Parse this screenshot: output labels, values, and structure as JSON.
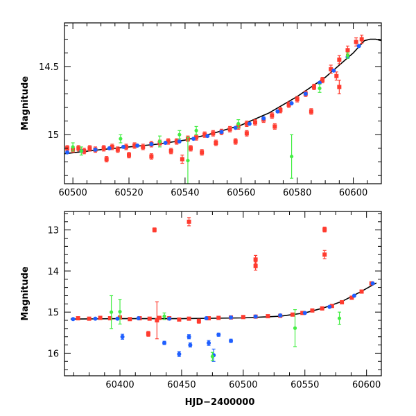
{
  "colors": {
    "red": "#ff3b2f",
    "blue": "#1f5fff",
    "green": "#44ee44",
    "model": "#000000"
  },
  "chart_data": [
    {
      "type": "scatter",
      "title": "",
      "xlabel": "",
      "ylabel": "Magnitude",
      "xlim": [
        60497,
        60610
      ],
      "ylim": [
        15.36,
        14.18
      ],
      "y_inverted": true,
      "xticks": [
        60500,
        60520,
        60540,
        60560,
        60580,
        60600
      ],
      "xtick_labels": [
        "60500",
        "60520",
        "60540",
        "60560",
        "60580",
        "60600"
      ],
      "yticks": [
        14.5,
        15
      ],
      "ytick_labels": [
        "14.5",
        "15"
      ],
      "grid": false,
      "model_curve": {
        "x": [
          60497,
          60510,
          60520,
          60530,
          60540,
          60550,
          60560,
          60570,
          60580,
          60590,
          60600,
          60604,
          60606,
          60608,
          60610
        ],
        "y": [
          15.14,
          15.11,
          15.09,
          15.07,
          15.04,
          14.99,
          14.93,
          14.84,
          14.72,
          14.58,
          14.4,
          14.31,
          14.3,
          14.3,
          14.31
        ]
      },
      "series": [
        {
          "color": "red",
          "x": [
            60498,
            60500,
            60502,
            60504,
            60506,
            60508,
            60511,
            60514,
            60516,
            60519,
            60522,
            60525,
            60528,
            60531,
            60534,
            60537,
            60541,
            60544,
            60547,
            60550,
            60553,
            60556,
            60559,
            60562,
            60565,
            60568,
            60571,
            60574,
            60577,
            60580,
            60583,
            60586,
            60589,
            60592,
            60595,
            60598,
            60601,
            60603,
            60512,
            60520,
            60528,
            60535,
            60539,
            60542,
            60546,
            60551,
            60558,
            60562,
            60572,
            60585,
            60594,
            60595
          ],
          "y": [
            15.1,
            15.11,
            15.1,
            15.12,
            15.1,
            15.11,
            15.1,
            15.09,
            15.11,
            15.09,
            15.08,
            15.09,
            15.07,
            15.06,
            15.05,
            15.05,
            15.03,
            15.02,
            15.0,
            14.99,
            14.98,
            14.96,
            14.94,
            14.92,
            14.91,
            14.89,
            14.86,
            14.82,
            14.78,
            14.74,
            14.7,
            14.65,
            14.6,
            14.52,
            14.45,
            14.38,
            14.32,
            14.3,
            15.18,
            15.15,
            15.16,
            15.12,
            15.18,
            15.1,
            15.13,
            15.06,
            15.05,
            14.99,
            14.94,
            14.83,
            14.57,
            14.65
          ],
          "yerr": [
            0.02,
            0.02,
            0.02,
            0.02,
            0.02,
            0.02,
            0.02,
            0.02,
            0.02,
            0.02,
            0.02,
            0.02,
            0.02,
            0.02,
            0.02,
            0.02,
            0.02,
            0.02,
            0.02,
            0.02,
            0.02,
            0.02,
            0.02,
            0.02,
            0.02,
            0.02,
            0.02,
            0.02,
            0.02,
            0.02,
            0.02,
            0.02,
            0.02,
            0.03,
            0.03,
            0.03,
            0.03,
            0.03,
            0.02,
            0.02,
            0.02,
            0.02,
            0.03,
            0.02,
            0.02,
            0.02,
            0.02,
            0.02,
            0.02,
            0.02,
            0.03,
            0.05
          ]
        },
        {
          "color": "blue",
          "x": [
            60498,
            60503,
            60508,
            60513,
            60518,
            60523,
            60528,
            60533,
            60538,
            60543,
            60548,
            60553,
            60558,
            60563,
            60568,
            60573,
            60578,
            60583,
            60588,
            60593,
            60598,
            60602
          ],
          "y": [
            15.13,
            15.12,
            15.11,
            15.1,
            15.09,
            15.08,
            15.07,
            15.06,
            15.05,
            15.03,
            15.01,
            14.98,
            14.95,
            14.92,
            14.88,
            14.83,
            14.77,
            14.7,
            14.62,
            14.53,
            14.43,
            14.35
          ],
          "yerr": [
            0.01,
            0.01,
            0.01,
            0.01,
            0.01,
            0.01,
            0.01,
            0.01,
            0.01,
            0.01,
            0.01,
            0.01,
            0.01,
            0.01,
            0.01,
            0.01,
            0.01,
            0.01,
            0.01,
            0.01,
            0.01,
            0.01
          ]
        },
        {
          "color": "green",
          "x": [
            60500,
            60503,
            60517,
            60531,
            60538,
            60541,
            60544,
            60559,
            60578,
            60588,
            60598
          ],
          "y": [
            15.09,
            15.12,
            15.03,
            15.05,
            15.0,
            15.19,
            14.97,
            14.92,
            15.16,
            14.66,
            14.42
          ],
          "yerr": [
            0.03,
            0.03,
            0.03,
            0.04,
            0.03,
            0.17,
            0.03,
            0.03,
            0.16,
            0.03,
            0.02
          ]
        }
      ]
    },
    {
      "type": "scatter",
      "title": "",
      "xlabel": "HJD−2400000",
      "ylabel": "Magnitude",
      "xlim": [
        60355,
        60612
      ],
      "ylim": [
        16.55,
        12.55
      ],
      "y_inverted": true,
      "xticks": [
        60400,
        60450,
        60500,
        60550,
        60600
      ],
      "xtick_labels": [
        "60400",
        "60450",
        "60500",
        "60550",
        "60600"
      ],
      "yticks": [
        13,
        14,
        15,
        16
      ],
      "ytick_labels": [
        "13",
        "14",
        "15",
        "16"
      ],
      "grid": false,
      "model_curve": {
        "x": [
          60360,
          60400,
          60450,
          60500,
          60530,
          60550,
          60565,
          60580,
          60595,
          60608
        ],
        "y": [
          15.17,
          15.16,
          15.16,
          15.14,
          15.1,
          15.02,
          14.9,
          14.74,
          14.51,
          14.29
        ]
      },
      "series": [
        {
          "color": "red",
          "x": [
            60366,
            60375,
            60384,
            60392,
            60400,
            60408,
            60416,
            60424,
            60432,
            60440,
            60448,
            60456,
            60464,
            60472,
            60480,
            60490,
            60500,
            60510,
            60520,
            60530,
            60540,
            60548,
            60556,
            60564,
            60572,
            60580,
            60588,
            60596,
            60604,
            60428,
            60456,
            60510,
            60510,
            60566,
            60566,
            60423,
            60430
          ],
          "y": [
            15.15,
            15.16,
            15.14,
            15.15,
            15.13,
            15.17,
            15.15,
            15.16,
            15.14,
            15.15,
            15.18,
            15.16,
            15.22,
            15.15,
            15.14,
            15.13,
            15.12,
            15.11,
            15.1,
            15.09,
            15.06,
            15.02,
            14.96,
            14.91,
            14.85,
            14.76,
            14.65,
            14.5,
            14.3,
            13.0,
            12.8,
            13.72,
            13.88,
            12.99,
            13.6,
            15.53,
            15.2
          ],
          "yerr": [
            0.03,
            0.03,
            0.03,
            0.03,
            0.03,
            0.03,
            0.03,
            0.03,
            0.03,
            0.03,
            0.03,
            0.03,
            0.05,
            0.03,
            0.03,
            0.03,
            0.03,
            0.03,
            0.03,
            0.03,
            0.03,
            0.03,
            0.03,
            0.03,
            0.03,
            0.03,
            0.03,
            0.03,
            0.03,
            0.05,
            0.1,
            0.1,
            0.1,
            0.06,
            0.1,
            0.06,
            0.45
          ]
        },
        {
          "color": "blue",
          "x": [
            60362,
            60380,
            60398,
            60415,
            60440,
            60470,
            60490,
            60510,
            60530,
            60550,
            60570,
            60590,
            60605,
            60402,
            60436,
            60448,
            60456,
            60457,
            60472,
            60476,
            60480,
            60490
          ],
          "y": [
            15.17,
            15.16,
            15.16,
            15.15,
            15.16,
            15.15,
            15.13,
            15.11,
            15.08,
            15.02,
            14.87,
            14.6,
            14.3,
            15.6,
            15.75,
            16.02,
            15.6,
            15.8,
            15.75,
            16.05,
            15.55,
            15.7
          ],
          "yerr": [
            0.02,
            0.02,
            0.02,
            0.02,
            0.02,
            0.02,
            0.02,
            0.02,
            0.02,
            0.02,
            0.02,
            0.02,
            0.02,
            0.06,
            0.04,
            0.06,
            0.05,
            0.05,
            0.06,
            0.15,
            0.04,
            0.04
          ]
        },
        {
          "color": "green",
          "x": [
            60393,
            60400,
            60436,
            60475,
            60542,
            60578
          ],
          "y": [
            15.0,
            14.99,
            15.1,
            16.08,
            15.39,
            15.15
          ],
          "yerr": [
            0.4,
            0.3,
            0.08,
            0.1,
            0.45,
            0.15
          ]
        }
      ]
    }
  ]
}
